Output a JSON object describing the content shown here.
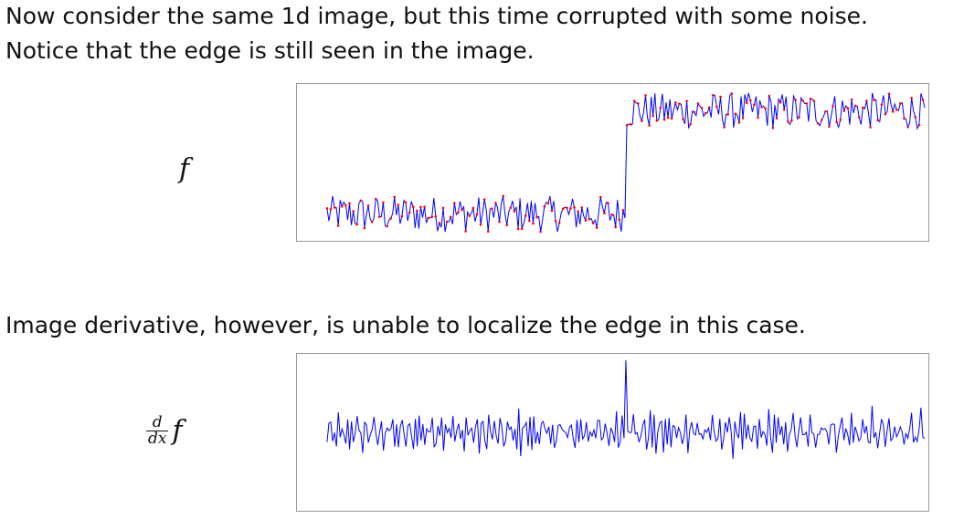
{
  "text": {
    "intro_line_1": "Now consider the same 1d image, but this time corrupted with some noise.",
    "intro_line_2": "Notice that the edge is still seen in the image.",
    "derivative_line": "Image derivative, however, is unable to localize the edge in this case."
  },
  "labels": {
    "f": "f",
    "df_numerator": "d",
    "df_denominator": "dx",
    "df_function": "f"
  },
  "colors": {
    "line": "#0000ff",
    "marker": "#ff0000",
    "border": "#9a9a9a"
  },
  "chart_data": [
    {
      "type": "line",
      "series": [
        {
          "description_values": "step signal with noise",
          "step_at_fraction": 0.5,
          "low_level": -1,
          "high_level": 1,
          "noise_amplitude": 0.35,
          "markers": true
        }
      ]
    },
    {
      "type": "line",
      "series": [
        {
          "description_values": "derivative of noisy step",
          "markers": false
        }
      ]
    }
  ]
}
